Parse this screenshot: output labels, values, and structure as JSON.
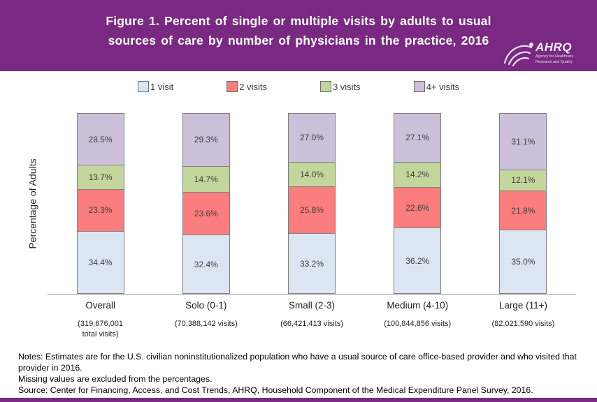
{
  "header": {
    "title": "Figure 1. Percent of single or multiple visits by adults to usual\nsources of care by number of physicians in the practice, 2016",
    "logo": {
      "org": "AHRQ",
      "tagline": "Agency for Healthcare Research and Quality"
    }
  },
  "legend": {
    "items": [
      {
        "label": "1 visit",
        "color": "#dce6f2"
      },
      {
        "label": "2 visits",
        "color": "#fc7d7d"
      },
      {
        "label": "3 visits",
        "color": "#c3d69b"
      },
      {
        "label": "4+ visits",
        "color": "#ccc0da"
      }
    ]
  },
  "chart_data": {
    "type": "bar",
    "stacked": true,
    "title": "Figure 1. Percent of single or multiple visits by adults to usual sources of care by number of physicians in the practice, 2016",
    "xlabel": "",
    "ylabel": "Percentage of Adults",
    "ylim": [
      0,
      100
    ],
    "grid": false,
    "legend_position": "top",
    "categories": [
      "Overall",
      "Solo (0-1)",
      "Small (2-3)",
      "Medium (4-10)",
      "Large (11+)"
    ],
    "category_subtitles": [
      "(319,676,001\ntotal visits)",
      "(70,388,142 visits)",
      "(66,421,413 visits)",
      "(100,844,856 visits)",
      "(82,021,590 visits)"
    ],
    "series": [
      {
        "name": "1 visit",
        "color": "#dce6f2",
        "values": [
          34.4,
          32.4,
          33.2,
          36.2,
          35.0
        ]
      },
      {
        "name": "2 visits",
        "color": "#fc7d7d",
        "values": [
          23.3,
          23.6,
          25.8,
          22.6,
          21.8
        ]
      },
      {
        "name": "3 visits",
        "color": "#c3d69b",
        "values": [
          13.7,
          14.7,
          14.0,
          14.2,
          12.1
        ]
      },
      {
        "name": "4+ visits",
        "color": "#ccc0da",
        "values": [
          28.5,
          29.3,
          27.0,
          27.1,
          31.1
        ]
      }
    ]
  },
  "notes": {
    "line1": "Notes: Estimates are for the U.S. civilian noninstitutionalized population who have a usual source of care office-based provider and who visited that provider in 2016.",
    "line2": "Missing values are excluded from the percentages.",
    "line3": "Source: Center for Financing, Access, and Cost Trends, AHRQ, Household Component of the Medical Expenditure Panel Survey, 2016."
  },
  "colors": {
    "banner": "#7a2982",
    "axis_line": "#c9c9c9",
    "segment_border": "#7f7f7f",
    "value_label": "#3f3f3f"
  }
}
